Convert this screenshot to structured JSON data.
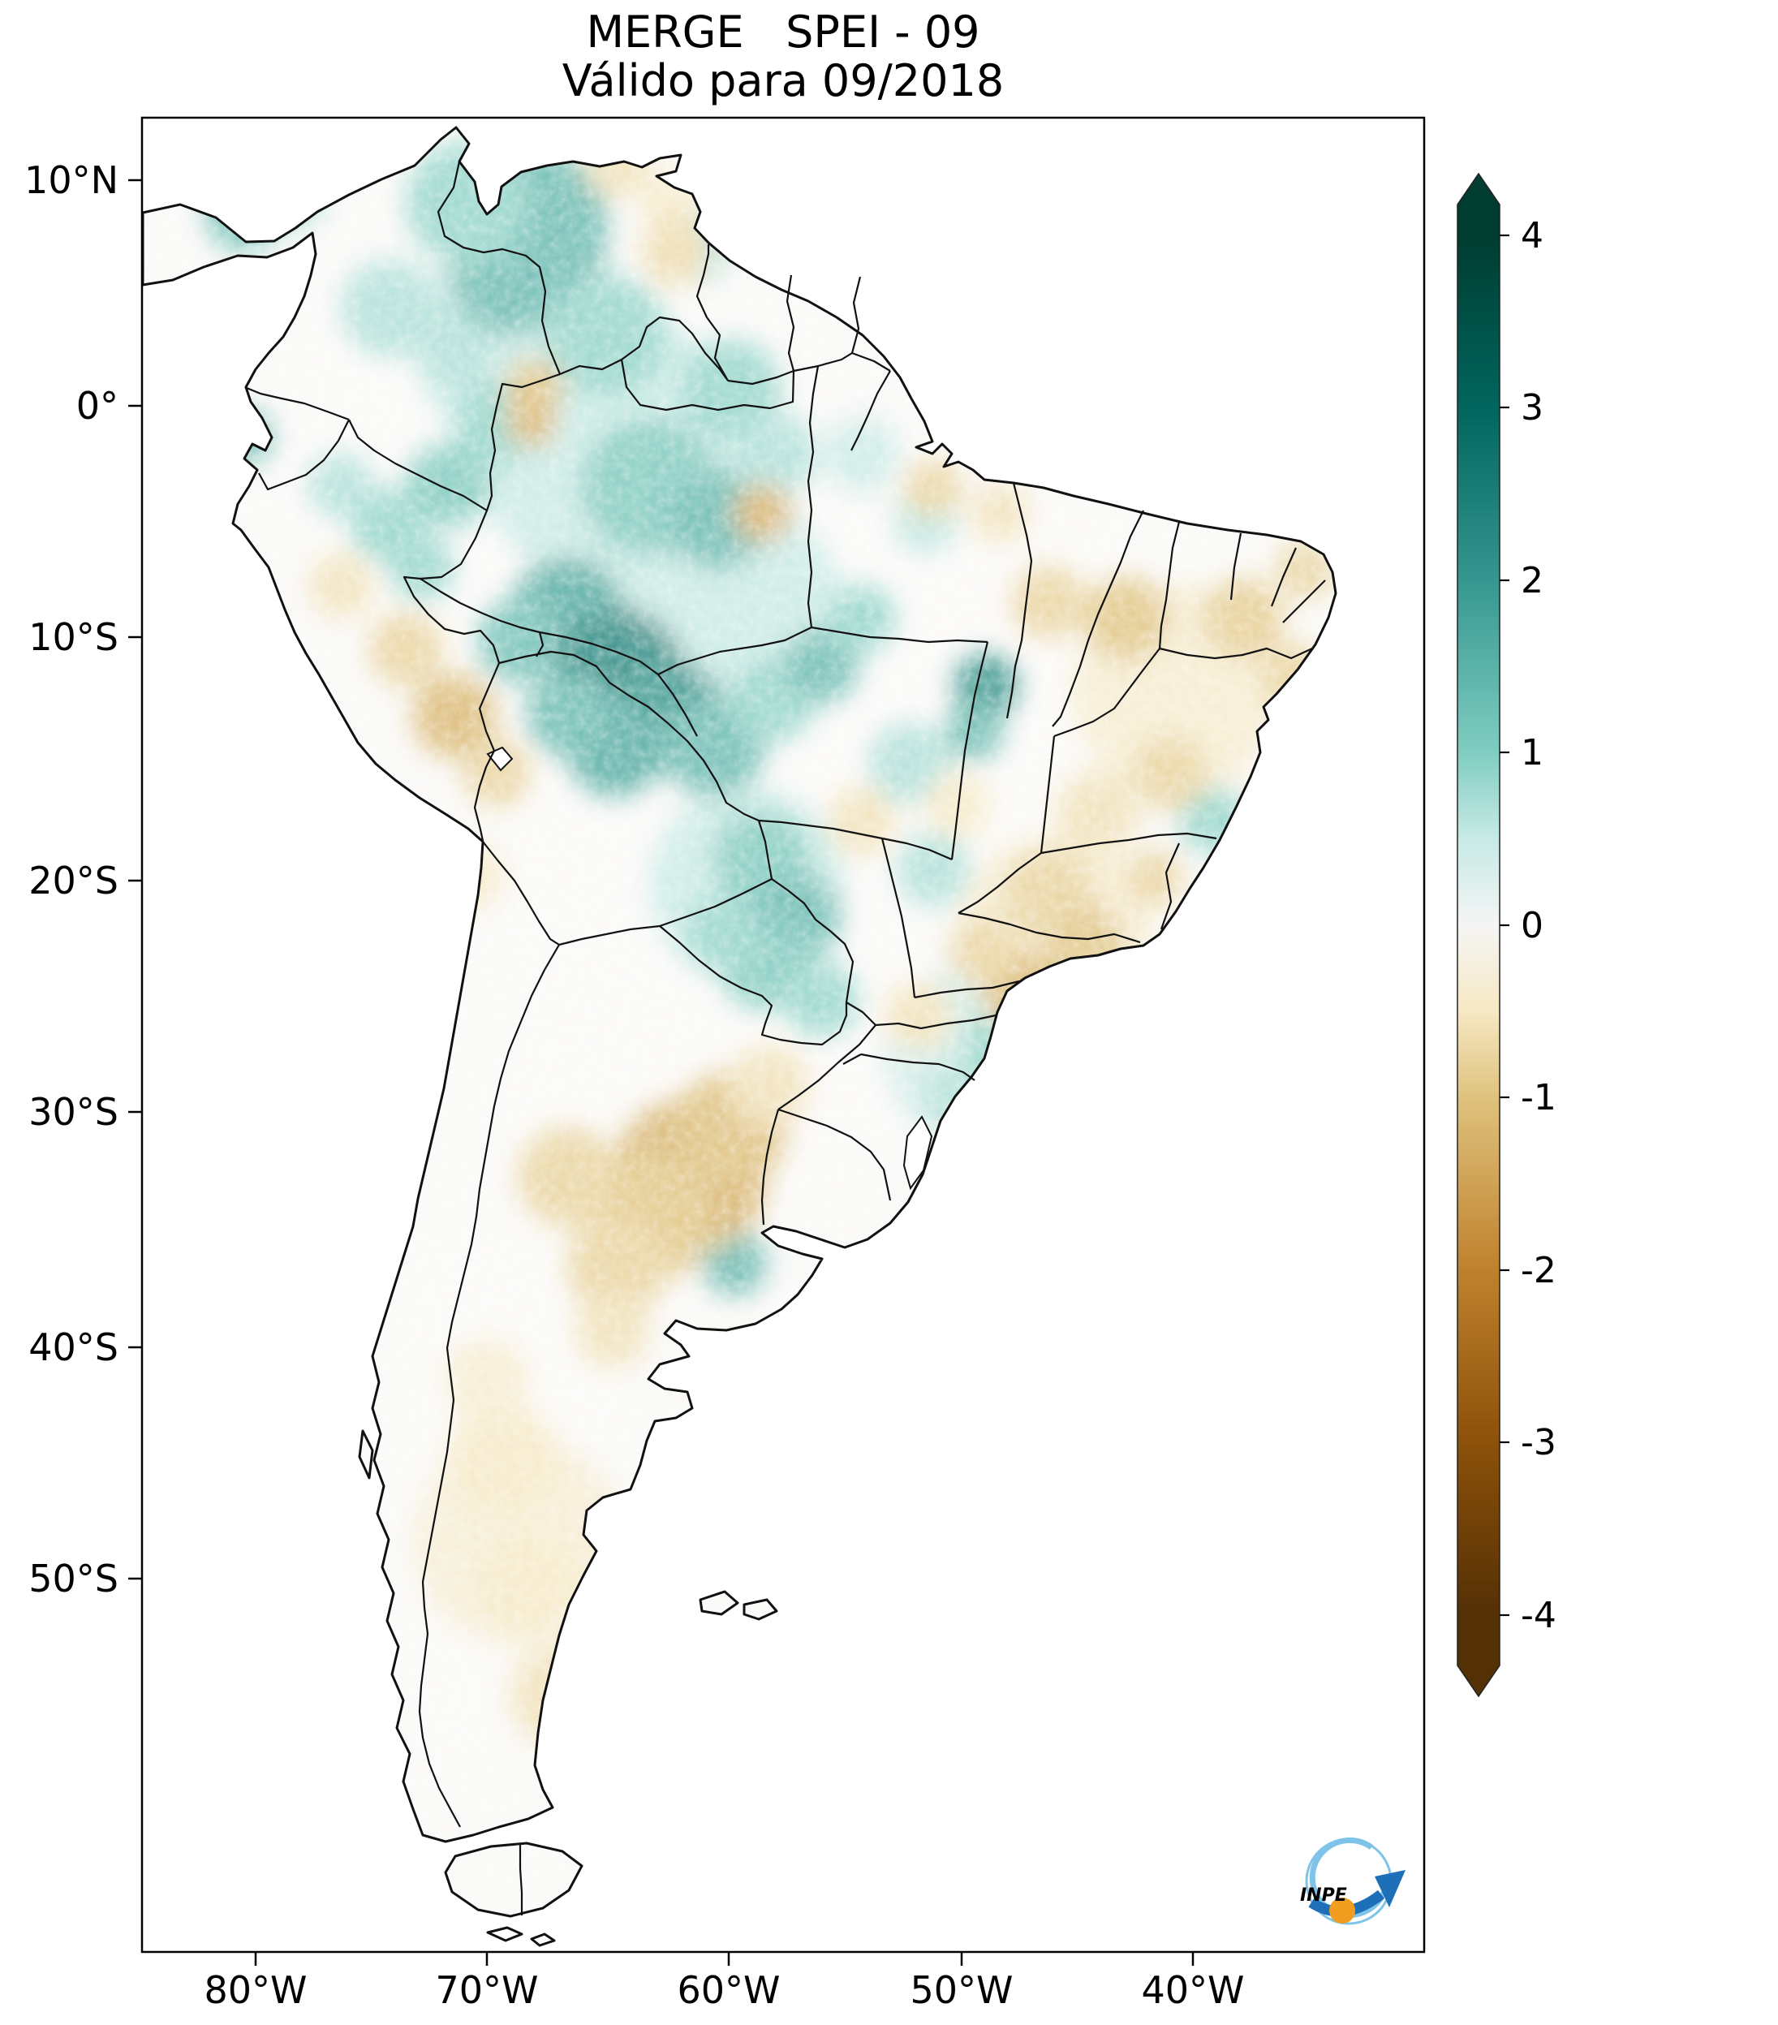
{
  "title": {
    "line1": "MERGE   SPEI - 09",
    "line2": "Válido para 09/2018"
  },
  "y_axis": {
    "ticks": [
      "10°N",
      "0°",
      "10°S",
      "20°S",
      "30°S",
      "40°S",
      "50°S"
    ]
  },
  "x_axis": {
    "ticks": [
      "80°W",
      "70°W",
      "60°W",
      "50°W",
      "40°W"
    ]
  },
  "colorbar": {
    "ticks": [
      "4",
      "3",
      "2",
      "1",
      "0",
      "-1",
      "-2",
      "-3",
      "-4"
    ],
    "stops": [
      {
        "v": 4,
        "c": "#003c30"
      },
      {
        "v": 3,
        "c": "#01665e"
      },
      {
        "v": 2,
        "c": "#35978f"
      },
      {
        "v": 1,
        "c": "#80cdc1"
      },
      {
        "v": 0.5,
        "c": "#c7eae5"
      },
      {
        "v": 0,
        "c": "#f5f5f5"
      },
      {
        "v": -0.5,
        "c": "#f6e8c3"
      },
      {
        "v": -1,
        "c": "#dfc27d"
      },
      {
        "v": -2,
        "c": "#bf812d"
      },
      {
        "v": -3,
        "c": "#8c510a"
      },
      {
        "v": -4,
        "c": "#543005"
      }
    ]
  },
  "map": {
    "colors": {
      "land": "#fbfaf8",
      "outline": "#111111",
      "ocean": "#ffffff"
    }
  },
  "logo": {
    "label": "INPE",
    "dark_blue": "#1d6fb8",
    "light_blue": "#7fc4e8",
    "orange": "#f09d20"
  },
  "chart_data": {
    "type": "heatmap",
    "title": "MERGE   SPEI - 09",
    "subtitle": "Válido para 09/2018",
    "index_name": "SPEI",
    "accumulation_months": 9,
    "valid_for": "09/2018",
    "region": "South America",
    "x_axis_ticks": [
      "80°W",
      "70°W",
      "60°W",
      "50°W",
      "40°W"
    ],
    "y_axis_ticks": [
      "10°N",
      "0°",
      "10°S",
      "20°S",
      "30°S",
      "40°S",
      "50°S"
    ],
    "colorbar_ticks": [
      4,
      3,
      2,
      1,
      0,
      -1,
      -2,
      -3,
      -4
    ],
    "colorbar_range": [
      -4,
      4
    ],
    "colormap": "brown-white-teal diverging (BrBG)",
    "legend_position": "right",
    "anomaly_points_format": "[x_px, y_px, radius_px, spei_value]",
    "anomaly_points": [
      [
        760,
        560,
        170,
        0.5
      ],
      [
        880,
        760,
        160,
        0.5
      ],
      [
        650,
        420,
        140,
        0.5
      ],
      [
        920,
        1090,
        120,
        0.5
      ],
      [
        1200,
        1300,
        110,
        0.4
      ],
      [
        688,
        295,
        60,
        2.9
      ],
      [
        655,
        275,
        95,
        1.4
      ],
      [
        625,
        345,
        70,
        1.4
      ],
      [
        575,
        250,
        75,
        0.9
      ],
      [
        300,
        262,
        48,
        1.3
      ],
      [
        360,
        240,
        40,
        0.8
      ],
      [
        480,
        380,
        60,
        0.7
      ],
      [
        748,
        415,
        75,
        0.9
      ],
      [
        852,
        300,
        50,
        0.7
      ],
      [
        900,
        480,
        62,
        0.9
      ],
      [
        800,
        600,
        85,
        1.1
      ],
      [
        885,
        640,
        62,
        1.4
      ],
      [
        955,
        560,
        52,
        0.7
      ],
      [
        612,
        520,
        52,
        0.9
      ],
      [
        552,
        598,
        52,
        1.1
      ],
      [
        478,
        648,
        46,
        0.9
      ],
      [
        420,
        598,
        40,
        0.7
      ],
      [
        302,
        538,
        34,
        1.4
      ],
      [
        700,
        758,
        72,
        1.7
      ],
      [
        640,
        790,
        52,
        1.3
      ],
      [
        762,
        832,
        82,
        2.4
      ],
      [
        822,
        880,
        70,
        2.1
      ],
      [
        880,
        922,
        62,
        1.4
      ],
      [
        758,
        922,
        60,
        1.7
      ],
      [
        700,
        880,
        52,
        1.4
      ],
      [
        952,
        862,
        52,
        0.9
      ],
      [
        1012,
        820,
        46,
        1.4
      ],
      [
        1062,
        762,
        42,
        0.9
      ],
      [
        1215,
        845,
        40,
        2.2
      ],
      [
        1200,
        902,
        36,
        1.4
      ],
      [
        1120,
        940,
        50,
        0.7
      ],
      [
        938,
        1058,
        60,
        1.1
      ],
      [
        980,
        1130,
        56,
        1.4
      ],
      [
        940,
        1192,
        52,
        1.1
      ],
      [
        1012,
        1232,
        46,
        0.9
      ],
      [
        890,
        1150,
        46,
        0.9
      ],
      [
        1150,
        1072,
        46,
        0.7
      ],
      [
        1232,
        1292,
        46,
        0.9
      ],
      [
        1180,
        1352,
        42,
        0.7
      ],
      [
        905,
        1556,
        40,
        1.5
      ],
      [
        868,
        1518,
        34,
        0.9
      ],
      [
        560,
        432,
        46,
        0.7
      ],
      [
        1495,
        1010,
        42,
        0.9
      ],
      [
        1440,
        878,
        34,
        0.7
      ],
      [
        1062,
        560,
        46,
        0.5
      ],
      [
        1140,
        642,
        40,
        0.6
      ],
      [
        520,
        700,
        40,
        0.9
      ],
      [
        1450,
        850,
        130,
        -0.4
      ],
      [
        1300,
        1150,
        120,
        -0.4
      ],
      [
        640,
        1900,
        130,
        -0.35
      ],
      [
        850,
        1448,
        95,
        -1.3
      ],
      [
        900,
        1390,
        70,
        -1.1
      ],
      [
        798,
        1500,
        80,
        -1.0
      ],
      [
        760,
        1560,
        62,
        -0.8
      ],
      [
        700,
        1450,
        62,
        -0.8
      ],
      [
        948,
        1338,
        50,
        -0.6
      ],
      [
        620,
        1800,
        70,
        -0.5
      ],
      [
        650,
        1950,
        62,
        -0.5
      ],
      [
        690,
        2090,
        62,
        -0.6
      ],
      [
        600,
        1700,
        52,
        -0.4
      ],
      [
        560,
        882,
        52,
        -1.2
      ],
      [
        500,
        800,
        46,
        -0.8
      ],
      [
        612,
        952,
        42,
        -0.8
      ],
      [
        420,
        722,
        40,
        -0.6
      ],
      [
        658,
        478,
        36,
        -1.0
      ],
      [
        762,
        202,
        42,
        -0.6
      ],
      [
        826,
        252,
        36,
        -0.5
      ],
      [
        832,
        310,
        42,
        -0.7
      ],
      [
        940,
        632,
        36,
        -1.3
      ],
      [
        1150,
        602,
        36,
        -0.8
      ],
      [
        1232,
        632,
        36,
        -0.6
      ],
      [
        1292,
        742,
        46,
        -0.8
      ],
      [
        1388,
        760,
        26,
        -2.4
      ],
      [
        1388,
        762,
        52,
        -1.0
      ],
      [
        1532,
        762,
        50,
        -0.9
      ],
      [
        1592,
        832,
        40,
        -0.8
      ],
      [
        1442,
        952,
        46,
        -0.8
      ],
      [
        1352,
        1002,
        52,
        -0.6
      ],
      [
        1292,
        1102,
        56,
        -0.8
      ],
      [
        1338,
        1162,
        46,
        -1.0
      ],
      [
        1262,
        1222,
        52,
        -1.2
      ],
      [
        1212,
        1172,
        42,
        -0.8
      ],
      [
        1422,
        1082,
        36,
        -0.8
      ],
      [
        1132,
        1252,
        42,
        -0.6
      ],
      [
        1062,
        1012,
        42,
        -0.6
      ],
      [
        655,
        520,
        32,
        -1.2
      ],
      [
        1180,
        992,
        40,
        -0.5
      ],
      [
        1608,
        702,
        36,
        -0.8
      ],
      [
        905,
        1700,
        50,
        -0.5
      ],
      [
        580,
        1080,
        40,
        -0.5
      ],
      [
        755,
        1640,
        46,
        -0.6
      ]
    ]
  }
}
